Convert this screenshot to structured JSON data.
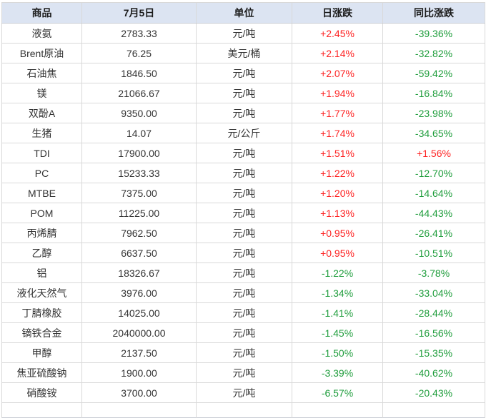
{
  "table": {
    "headers": [
      "商品",
      "7月5日",
      "单位",
      "日涨跌",
      "同比涨跌"
    ],
    "rows": [
      {
        "name": "液氨",
        "price": "2783.33",
        "unit": "元/吨",
        "daily": "+2.45%",
        "daily_dir": "up",
        "yoy": "-39.36%",
        "yoy_dir": "down"
      },
      {
        "name": "Brent原油",
        "price": "76.25",
        "unit": "美元/桶",
        "daily": "+2.14%",
        "daily_dir": "up",
        "yoy": "-32.82%",
        "yoy_dir": "down"
      },
      {
        "name": "石油焦",
        "price": "1846.50",
        "unit": "元/吨",
        "daily": "+2.07%",
        "daily_dir": "up",
        "yoy": "-59.42%",
        "yoy_dir": "down"
      },
      {
        "name": "镁",
        "price": "21066.67",
        "unit": "元/吨",
        "daily": "+1.94%",
        "daily_dir": "up",
        "yoy": "-16.84%",
        "yoy_dir": "down"
      },
      {
        "name": "双酚A",
        "price": "9350.00",
        "unit": "元/吨",
        "daily": "+1.77%",
        "daily_dir": "up",
        "yoy": "-23.98%",
        "yoy_dir": "down"
      },
      {
        "name": "生猪",
        "price": "14.07",
        "unit": "元/公斤",
        "daily": "+1.74%",
        "daily_dir": "up",
        "yoy": "-34.65%",
        "yoy_dir": "down"
      },
      {
        "name": "TDI",
        "price": "17900.00",
        "unit": "元/吨",
        "daily": "+1.51%",
        "daily_dir": "up",
        "yoy": "+1.56%",
        "yoy_dir": "up"
      },
      {
        "name": "PC",
        "price": "15233.33",
        "unit": "元/吨",
        "daily": "+1.22%",
        "daily_dir": "up",
        "yoy": "-12.70%",
        "yoy_dir": "down"
      },
      {
        "name": "MTBE",
        "price": "7375.00",
        "unit": "元/吨",
        "daily": "+1.20%",
        "daily_dir": "up",
        "yoy": "-14.64%",
        "yoy_dir": "down"
      },
      {
        "name": "POM",
        "price": "11225.00",
        "unit": "元/吨",
        "daily": "+1.13%",
        "daily_dir": "up",
        "yoy": "-44.43%",
        "yoy_dir": "down"
      },
      {
        "name": "丙烯腈",
        "price": "7962.50",
        "unit": "元/吨",
        "daily": "+0.95%",
        "daily_dir": "up",
        "yoy": "-26.41%",
        "yoy_dir": "down"
      },
      {
        "name": "乙醇",
        "price": "6637.50",
        "unit": "元/吨",
        "daily": "+0.95%",
        "daily_dir": "up",
        "yoy": "-10.51%",
        "yoy_dir": "down"
      },
      {
        "name": "铝",
        "price": "18326.67",
        "unit": "元/吨",
        "daily": "-1.22%",
        "daily_dir": "down",
        "yoy": "-3.78%",
        "yoy_dir": "down"
      },
      {
        "name": "液化天然气",
        "price": "3976.00",
        "unit": "元/吨",
        "daily": "-1.34%",
        "daily_dir": "down",
        "yoy": "-33.04%",
        "yoy_dir": "down"
      },
      {
        "name": "丁腈橡胶",
        "price": "14025.00",
        "unit": "元/吨",
        "daily": "-1.41%",
        "daily_dir": "down",
        "yoy": "-28.44%",
        "yoy_dir": "down"
      },
      {
        "name": "镝铁合金",
        "price": "2040000.00",
        "unit": "元/吨",
        "daily": "-1.45%",
        "daily_dir": "down",
        "yoy": "-16.56%",
        "yoy_dir": "down"
      },
      {
        "name": "甲醇",
        "price": "2137.50",
        "unit": "元/吨",
        "daily": "-1.50%",
        "daily_dir": "down",
        "yoy": "-15.35%",
        "yoy_dir": "down"
      },
      {
        "name": "焦亚硫酸钠",
        "price": "1900.00",
        "unit": "元/吨",
        "daily": "-3.39%",
        "daily_dir": "down",
        "yoy": "-40.62%",
        "yoy_dir": "down"
      },
      {
        "name": "硝酸铵",
        "price": "3700.00",
        "unit": "元/吨",
        "daily": "-6.57%",
        "daily_dir": "down",
        "yoy": "-20.43%",
        "yoy_dir": "down"
      }
    ]
  },
  "colors": {
    "up": "#fe2222",
    "down": "#1f9d3c",
    "header_bg": "#dce4f2",
    "grid": "#d9d9d9",
    "text": "#333333"
  }
}
